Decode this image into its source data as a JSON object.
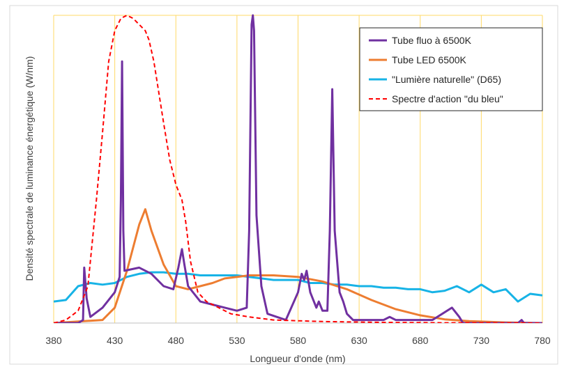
{
  "chart_data": {
    "type": "line",
    "title": "",
    "xlabel": "Longueur d'onde (nm)",
    "ylabel": "Densité spectrale de luminance énergétique (W/nm)",
    "xlim": [
      380,
      780
    ],
    "ylim": [
      0,
      1
    ],
    "x_ticks": [
      "380",
      "430",
      "480",
      "530",
      "580",
      "630",
      "680",
      "730",
      "780"
    ],
    "grid": "vertical",
    "grid_color": "#ffd966",
    "legend_position": "top-right",
    "series": [
      {
        "name": "Tube fluo à 6500K",
        "color": "#7030a0",
        "dash": "solid",
        "points": [
          [
            380,
            0
          ],
          [
            400,
            0
          ],
          [
            404,
            0.01
          ],
          [
            405,
            0.18
          ],
          [
            407,
            0.08
          ],
          [
            410,
            0.02
          ],
          [
            420,
            0.05
          ],
          [
            430,
            0.1
          ],
          [
            434,
            0.15
          ],
          [
            435,
            0.4
          ],
          [
            436,
            0.85
          ],
          [
            437,
            0.3
          ],
          [
            438,
            0.17
          ],
          [
            450,
            0.18
          ],
          [
            460,
            0.16
          ],
          [
            470,
            0.12
          ],
          [
            478,
            0.11
          ],
          [
            482,
            0.18
          ],
          [
            485,
            0.24
          ],
          [
            487,
            0.19
          ],
          [
            490,
            0.12
          ],
          [
            500,
            0.07
          ],
          [
            510,
            0.06
          ],
          [
            520,
            0.05
          ],
          [
            530,
            0.04
          ],
          [
            538,
            0.05
          ],
          [
            540,
            0.3
          ],
          [
            542,
            0.97
          ],
          [
            543,
            1.0
          ],
          [
            544,
            0.95
          ],
          [
            546,
            0.35
          ],
          [
            550,
            0.12
          ],
          [
            555,
            0.03
          ],
          [
            570,
            0.01
          ],
          [
            580,
            0.1
          ],
          [
            583,
            0.16
          ],
          [
            585,
            0.14
          ],
          [
            587,
            0.17
          ],
          [
            590,
            0.1
          ],
          [
            595,
            0.05
          ],
          [
            597,
            0.07
          ],
          [
            600,
            0.04
          ],
          [
            604,
            0.04
          ],
          [
            606,
            0.3
          ],
          [
            608,
            0.76
          ],
          [
            610,
            0.3
          ],
          [
            614,
            0.1
          ],
          [
            617,
            0.07
          ],
          [
            620,
            0.03
          ],
          [
            625,
            0.01
          ],
          [
            650,
            0.01
          ],
          [
            655,
            0.02
          ],
          [
            660,
            0.01
          ],
          [
            690,
            0.01
          ],
          [
            706,
            0.05
          ],
          [
            708,
            0.04
          ],
          [
            712,
            0.02
          ],
          [
            715,
            0.0
          ],
          [
            760,
            0.0
          ],
          [
            763,
            0.01
          ],
          [
            765,
            0.0
          ],
          [
            780,
            0.0
          ]
        ]
      },
      {
        "name": "Tube LED 6500K",
        "color": "#ed7d31",
        "dash": "solid",
        "points": [
          [
            380,
            0
          ],
          [
            420,
            0.01
          ],
          [
            430,
            0.05
          ],
          [
            440,
            0.17
          ],
          [
            450,
            0.32
          ],
          [
            455,
            0.37
          ],
          [
            460,
            0.3
          ],
          [
            470,
            0.19
          ],
          [
            480,
            0.12
          ],
          [
            490,
            0.11
          ],
          [
            500,
            0.12
          ],
          [
            510,
            0.13
          ],
          [
            520,
            0.145
          ],
          [
            530,
            0.15
          ],
          [
            540,
            0.155
          ],
          [
            560,
            0.155
          ],
          [
            580,
            0.15
          ],
          [
            600,
            0.135
          ],
          [
            620,
            0.11
          ],
          [
            640,
            0.075
          ],
          [
            660,
            0.045
          ],
          [
            680,
            0.025
          ],
          [
            700,
            0.012
          ],
          [
            720,
            0.006
          ],
          [
            750,
            0.002
          ],
          [
            780,
            0.0
          ]
        ]
      },
      {
        "name": "\"Lumière naturelle\" (D65)",
        "color": "#17b3e6",
        "dash": "solid",
        "points": [
          [
            380,
            0.07
          ],
          [
            390,
            0.075
          ],
          [
            400,
            0.12
          ],
          [
            410,
            0.13
          ],
          [
            420,
            0.125
          ],
          [
            430,
            0.13
          ],
          [
            440,
            0.15
          ],
          [
            450,
            0.16
          ],
          [
            460,
            0.165
          ],
          [
            470,
            0.165
          ],
          [
            480,
            0.16
          ],
          [
            490,
            0.16
          ],
          [
            500,
            0.155
          ],
          [
            510,
            0.155
          ],
          [
            520,
            0.155
          ],
          [
            530,
            0.155
          ],
          [
            540,
            0.15
          ],
          [
            550,
            0.145
          ],
          [
            560,
            0.14
          ],
          [
            570,
            0.14
          ],
          [
            580,
            0.14
          ],
          [
            590,
            0.13
          ],
          [
            600,
            0.13
          ],
          [
            610,
            0.125
          ],
          [
            620,
            0.125
          ],
          [
            630,
            0.12
          ],
          [
            640,
            0.12
          ],
          [
            650,
            0.115
          ],
          [
            660,
            0.115
          ],
          [
            670,
            0.11
          ],
          [
            680,
            0.11
          ],
          [
            690,
            0.1
          ],
          [
            700,
            0.105
          ],
          [
            710,
            0.12
          ],
          [
            720,
            0.1
          ],
          [
            730,
            0.125
          ],
          [
            740,
            0.1
          ],
          [
            750,
            0.11
          ],
          [
            760,
            0.07
          ],
          [
            770,
            0.095
          ],
          [
            780,
            0.09
          ]
        ]
      },
      {
        "name": "Spectre d'action \"du bleu\"",
        "color": "#ff0000",
        "dash": "dashed",
        "points": [
          [
            380,
            0
          ],
          [
            390,
            0.01
          ],
          [
            400,
            0.04
          ],
          [
            408,
            0.12
          ],
          [
            415,
            0.4
          ],
          [
            420,
            0.62
          ],
          [
            425,
            0.85
          ],
          [
            430,
            0.95
          ],
          [
            435,
            0.99
          ],
          [
            440,
            1.0
          ],
          [
            445,
            0.99
          ],
          [
            450,
            0.97
          ],
          [
            455,
            0.95
          ],
          [
            458,
            0.92
          ],
          [
            462,
            0.85
          ],
          [
            466,
            0.75
          ],
          [
            470,
            0.65
          ],
          [
            475,
            0.53
          ],
          [
            480,
            0.45
          ],
          [
            485,
            0.4
          ],
          [
            488,
            0.33
          ],
          [
            492,
            0.2
          ],
          [
            498,
            0.1
          ],
          [
            505,
            0.07
          ],
          [
            515,
            0.05
          ],
          [
            525,
            0.03
          ],
          [
            540,
            0.02
          ],
          [
            560,
            0.01
          ],
          [
            600,
            0.005
          ],
          [
            650,
            0.002
          ],
          [
            700,
            0.001
          ],
          [
            780,
            0.0
          ]
        ]
      }
    ]
  }
}
